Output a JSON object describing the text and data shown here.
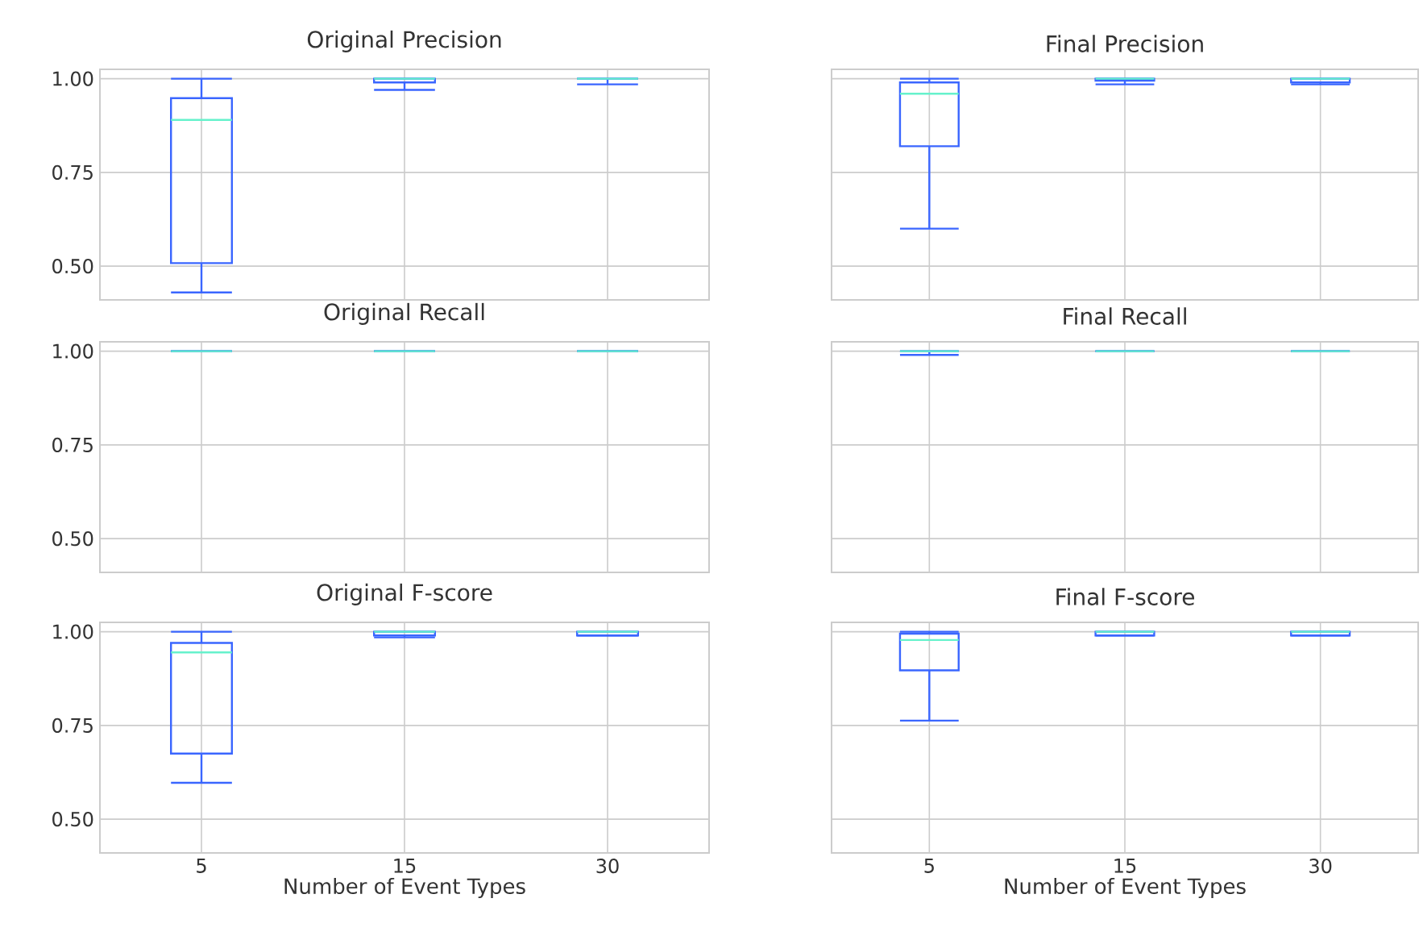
{
  "chart_data": [
    {
      "type": "box",
      "title": "Original Precision",
      "categories": [
        "5",
        "15",
        "30"
      ],
      "ylim": [
        0.41,
        1.025
      ],
      "yticks": [
        {
          "value": 0.5,
          "label": "0.50"
        },
        {
          "value": 0.75,
          "label": "0.75"
        },
        {
          "value": 1.0,
          "label": "1.00"
        }
      ],
      "grid": true,
      "tick_labels": "y",
      "series": [
        {
          "color": "#3a66ff",
          "boxes": [
            {
              "low": 0.43,
              "q1": 0.508,
              "median": 0.89,
              "q3": 0.948,
              "high": 1.0
            },
            {
              "low": 0.97,
              "q1": 0.99,
              "median": 1.0,
              "q3": 1.0,
              "high": 1.0
            },
            {
              "low": 0.985,
              "q1": 1.0,
              "median": 1.0,
              "q3": 1.0,
              "high": 1.0
            }
          ]
        }
      ]
    },
    {
      "type": "box",
      "title": "Final Precision",
      "categories": [
        "5",
        "15",
        "30"
      ],
      "ylim": [
        0.41,
        1.025
      ],
      "yticks": [
        0.5,
        0.75,
        1.0
      ],
      "grid": true,
      "tick_labels": false,
      "series": [
        {
          "color": "#3a66ff",
          "boxes": [
            {
              "low": 0.6,
              "q1": 0.82,
              "median": 0.96,
              "q3": 0.99,
              "high": 1.0
            },
            {
              "low": 0.985,
              "q1": 0.995,
              "median": 1.0,
              "q3": 1.0,
              "high": 1.0
            },
            {
              "low": 0.985,
              "q1": 0.99,
              "median": 1.0,
              "q3": 1.0,
              "high": 1.0
            }
          ]
        }
      ]
    },
    {
      "type": "box",
      "title": "Original Recall",
      "categories": [
        "5",
        "15",
        "30"
      ],
      "ylim": [
        0.41,
        1.025
      ],
      "yticks": [
        {
          "value": 0.5,
          "label": "0.50"
        },
        {
          "value": 0.75,
          "label": "0.75"
        },
        {
          "value": 1.0,
          "label": "1.00"
        }
      ],
      "grid": true,
      "tick_labels": "y",
      "series": [
        {
          "color": "#3a66ff",
          "boxes": [
            {
              "low": 1.0,
              "q1": 1.0,
              "median": 1.0,
              "q3": 1.0,
              "high": 1.0
            },
            {
              "low": 1.0,
              "q1": 1.0,
              "median": 1.0,
              "q3": 1.0,
              "high": 1.0
            },
            {
              "low": 1.0,
              "q1": 1.0,
              "median": 1.0,
              "q3": 1.0,
              "high": 1.0
            }
          ]
        }
      ]
    },
    {
      "type": "box",
      "title": "Final Recall",
      "categories": [
        "5",
        "15",
        "30"
      ],
      "ylim": [
        0.41,
        1.025
      ],
      "yticks": [
        0.5,
        0.75,
        1.0
      ],
      "grid": true,
      "tick_labels": false,
      "series": [
        {
          "color": "#3a66ff",
          "boxes": [
            {
              "low": 0.99,
              "q1": 1.0,
              "median": 1.0,
              "q3": 1.0,
              "high": 1.0
            },
            {
              "low": 1.0,
              "q1": 1.0,
              "median": 1.0,
              "q3": 1.0,
              "high": 1.0
            },
            {
              "low": 1.0,
              "q1": 1.0,
              "median": 1.0,
              "q3": 1.0,
              "high": 1.0
            }
          ]
        }
      ]
    },
    {
      "type": "box",
      "title": "Original F-score",
      "xlabel": "Number of Event Types",
      "categories": [
        "5",
        "15",
        "30"
      ],
      "ylim": [
        0.41,
        1.025
      ],
      "yticks": [
        {
          "value": 0.5,
          "label": "0.50"
        },
        {
          "value": 0.75,
          "label": "0.75"
        },
        {
          "value": 1.0,
          "label": "1.00"
        }
      ],
      "grid": true,
      "series": [
        {
          "color": "#3a66ff",
          "boxes": [
            {
              "low": 0.597,
              "q1": 0.675,
              "median": 0.945,
              "q3": 0.97,
              "high": 1.0
            },
            {
              "low": 0.985,
              "q1": 0.99,
              "median": 1.0,
              "q3": 1.0,
              "high": 1.0
            },
            {
              "low": 0.99,
              "q1": 0.99,
              "median": 1.0,
              "q3": 1.0,
              "high": 1.0
            }
          ]
        }
      ]
    },
    {
      "type": "box",
      "title": "Final F-score",
      "xlabel": "Number of Event Types",
      "categories": [
        "5",
        "15",
        "30"
      ],
      "ylim": [
        0.41,
        1.025
      ],
      "yticks": [
        0.5,
        0.75,
        1.0
      ],
      "grid": true,
      "tick_labels": "x",
      "series": [
        {
          "color": "#3a66ff",
          "boxes": [
            {
              "low": 0.763,
              "q1": 0.897,
              "median": 0.978,
              "q3": 0.995,
              "high": 1.0
            },
            {
              "low": 0.99,
              "q1": 0.99,
              "median": 1.0,
              "q3": 1.0,
              "high": 1.0
            },
            {
              "low": 0.99,
              "q1": 0.99,
              "median": 1.0,
              "q3": 1.0,
              "high": 1.0
            }
          ]
        }
      ]
    }
  ]
}
